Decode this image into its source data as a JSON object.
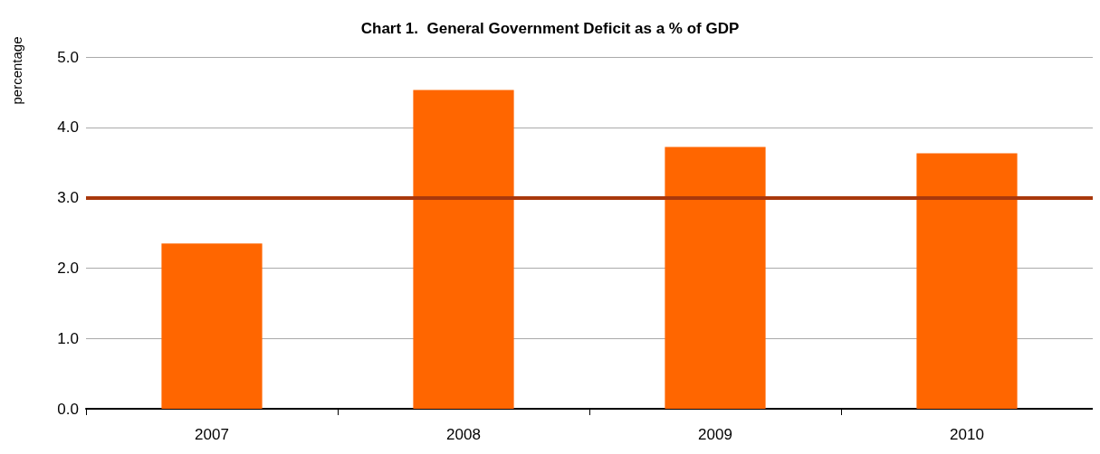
{
  "chart_data": {
    "type": "bar",
    "title": "Chart 1.  General Government Deficit as a % of GDP",
    "ylabel": "percentage",
    "categories": [
      "2007",
      "2008",
      "2009",
      "2010"
    ],
    "values": [
      2.35,
      4.53,
      3.72,
      3.63
    ],
    "color": "#ff6600",
    "ylim": [
      0,
      5
    ],
    "yticks": [
      {
        "value": 0,
        "label": "0.0"
      },
      {
        "value": 1,
        "label": "1.0"
      },
      {
        "value": 2,
        "label": "2.0"
      },
      {
        "value": 3,
        "label": "3.0"
      },
      {
        "value": 4,
        "label": "4.0"
      },
      {
        "value": 5,
        "label": "5.0"
      }
    ],
    "ref_lines": [
      {
        "axis": "y",
        "value": 3.0,
        "color": "#a8380c"
      }
    ],
    "grid": "y",
    "legend": false
  }
}
